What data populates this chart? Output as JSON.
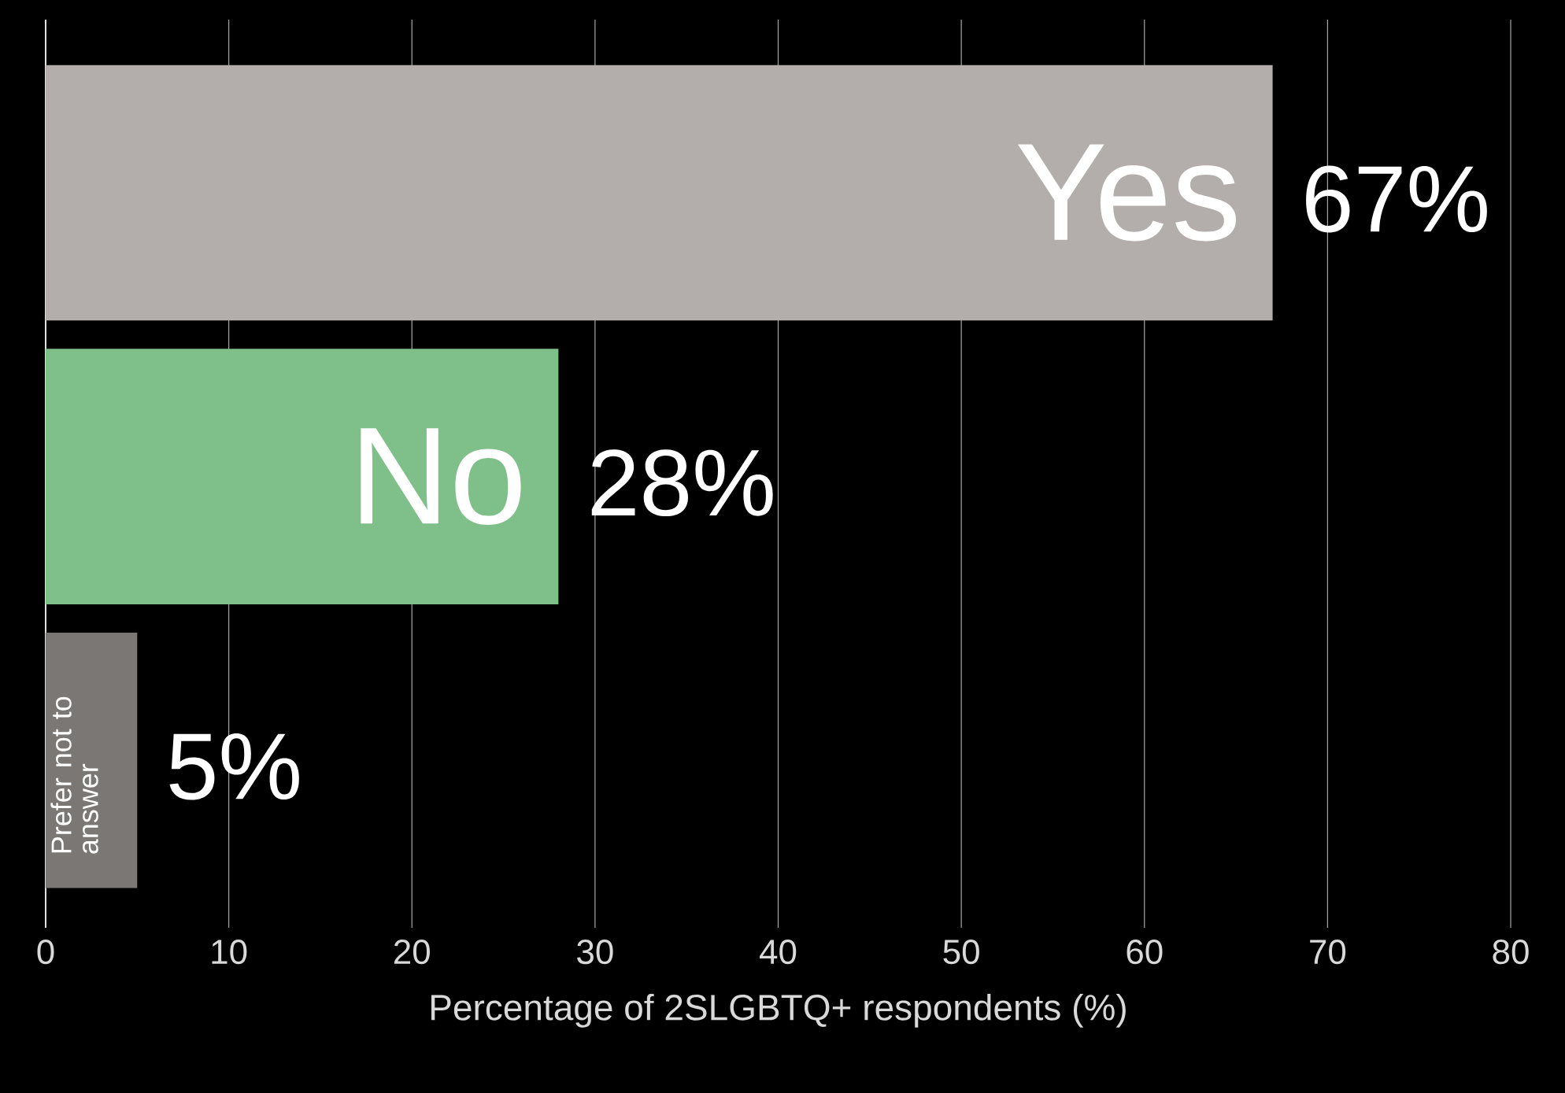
{
  "chart_data": {
    "type": "bar",
    "orientation": "horizontal",
    "xlabel": "Percentage of 2SLGBTQ+ respondents (%)",
    "categories": [
      "Yes",
      "No",
      "Prefer not to answer"
    ],
    "values": [
      67,
      28,
      5
    ],
    "value_labels": [
      "67%",
      "28%",
      "5%"
    ],
    "colors": [
      "#b3aeab",
      "#7fc08a",
      "#7b7775"
    ],
    "xlim": [
      0,
      80
    ],
    "xticks": [
      0,
      10,
      20,
      30,
      40,
      50,
      60,
      70,
      80
    ],
    "grid": "x"
  }
}
